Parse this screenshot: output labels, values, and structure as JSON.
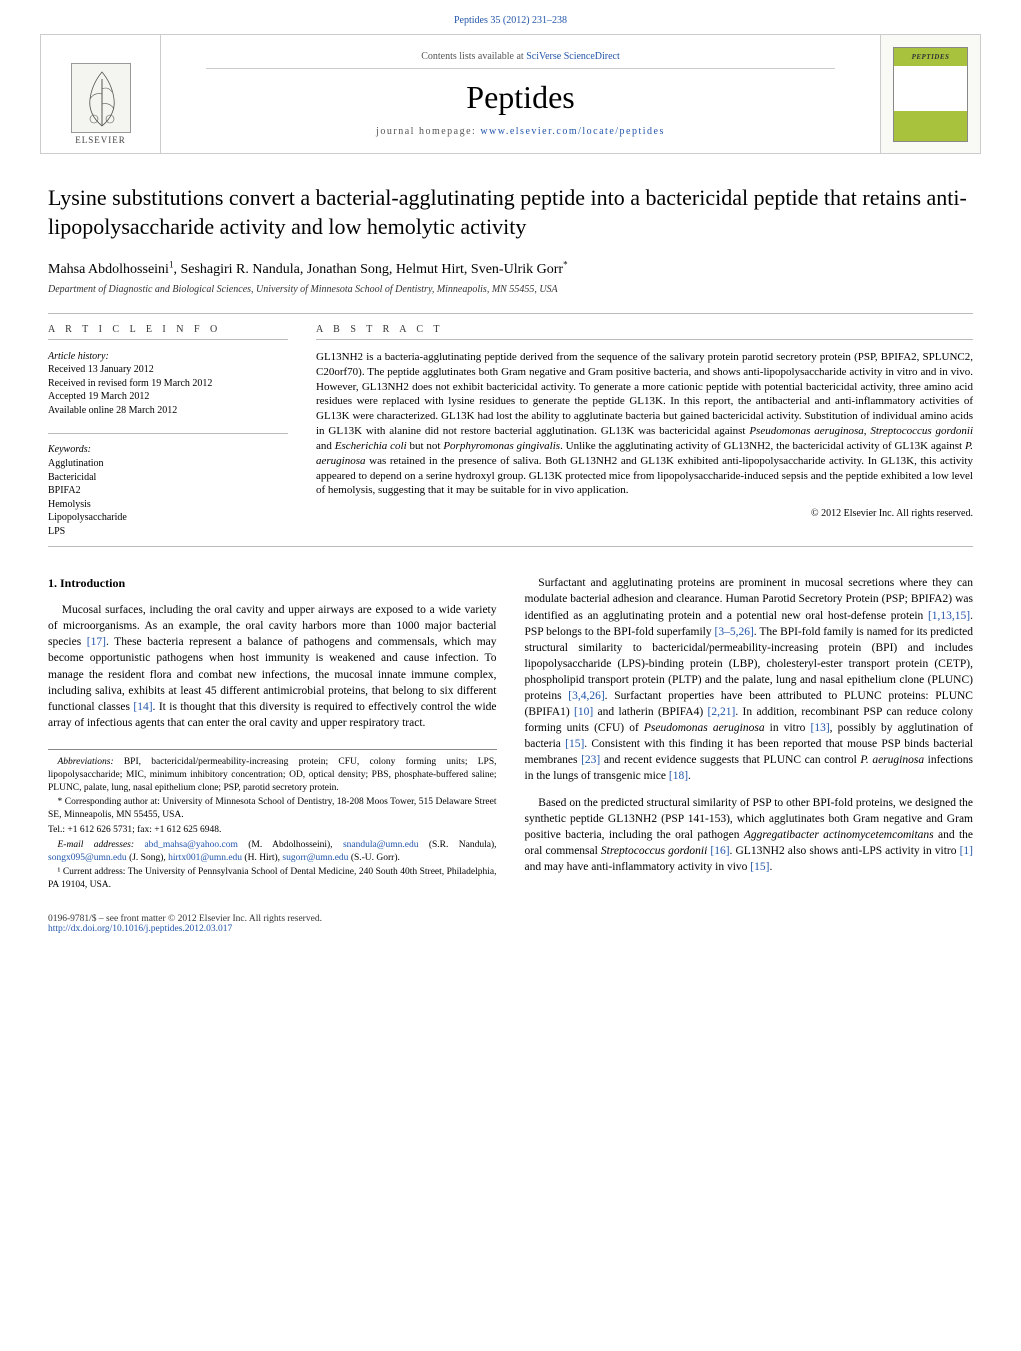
{
  "page_header": {
    "citation": "Peptides 35 (2012) 231–238",
    "journal_link_text": "Peptides"
  },
  "banner": {
    "contents_prefix": "Contents lists available at ",
    "contents_link": "SciVerse ScienceDirect",
    "journal_name": "Peptides",
    "homepage_prefix": "journal homepage: ",
    "homepage_url": "www.elsevier.com/locate/peptides",
    "elsevier_label": "ELSEVIER",
    "cover_label": "PEPTIDES"
  },
  "article": {
    "title": "Lysine substitutions convert a bacterial-agglutinating peptide into a bactericidal peptide that retains anti-lipopolysaccharide activity and low hemolytic activity",
    "authors_html": "Mahsa Abdolhosseini¹, Seshagiri R. Nandula, Jonathan Song, Helmut Hirt, Sven-Ulrik Gorr*",
    "affiliation": "Department of Diagnostic and Biological Sciences, University of Minnesota School of Dentistry, Minneapolis, MN 55455, USA"
  },
  "info": {
    "label": "A R T I C L E   I N F O",
    "history_title": "Article history:",
    "received": "Received 13 January 2012",
    "revised": "Received in revised form 19 March 2012",
    "accepted": "Accepted 19 March 2012",
    "online": "Available online 28 March 2012",
    "keywords_title": "Keywords:",
    "keywords": [
      "Agglutination",
      "Bactericidal",
      "BPIFA2",
      "Hemolysis",
      "Lipopolysaccharide",
      "LPS"
    ]
  },
  "abstract": {
    "label": "A B S T R A C T",
    "text": "GL13NH2 is a bacteria-agglutinating peptide derived from the sequence of the salivary protein parotid secretory protein (PSP, BPIFA2, SPLUNC2, C20orf70). The peptide agglutinates both Gram negative and Gram positive bacteria, and shows anti-lipopolysaccharide activity in vitro and in vivo. However, GL13NH2 does not exhibit bactericidal activity. To generate a more cationic peptide with potential bactericidal activity, three amino acid residues were replaced with lysine residues to generate the peptide GL13K. In this report, the antibacterial and anti-inflammatory activities of GL13K were characterized. GL13K had lost the ability to agglutinate bacteria but gained bactericidal activity. Substitution of individual amino acids in GL13K with alanine did not restore bacterial agglutination. GL13K was bactericidal against Pseudomonas aeruginosa, Streptococcus gordonii and Escherichia coli but not Porphyromonas gingivalis. Unlike the agglutinating activity of GL13NH2, the bactericidal activity of GL13K against P. aeruginosa was retained in the presence of saliva. Both GL13NH2 and GL13K exhibited anti-lipopolysaccharide activity. In GL13K, this activity appeared to depend on a serine hydroxyl group. GL13K protected mice from lipopolysaccharide-induced sepsis and the peptide exhibited a low level of hemolysis, suggesting that it may be suitable for in vivo application.",
    "copyright": "© 2012 Elsevier Inc. All rights reserved."
  },
  "body": {
    "intro_heading": "1.  Introduction",
    "para1": "Mucosal surfaces, including the oral cavity and upper airways are exposed to a wide variety of microorganisms. As an example, the oral cavity harbors more than 1000 major bacterial species [17]. These bacteria represent a balance of pathogens and commensals, which may become opportunistic pathogens when host immunity is weakened and cause infection. To manage the resident flora and combat new infections, the mucosal innate immune complex, including saliva, exhibits at least 45 different antimicrobial proteins, that belong to six different functional classes [14]. It is thought that this diversity is required to effectively control the wide array of infectious agents that can enter the oral cavity and upper respiratory tract.",
    "para2": "Surfactant and agglutinating proteins are prominent in mucosal secretions where they can modulate bacterial adhesion and clearance. Human Parotid Secretory Protein (PSP; BPIFA2) was identified as an agglutinating protein and a potential new oral host-defense protein [1,13,15]. PSP belongs to the BPI-fold superfamily [3–5,26]. The BPI-fold family is named for its predicted structural similarity to bactericidal/permeability-increasing protein (BPI) and includes lipopolysaccharide (LPS)-binding protein (LBP), cholesteryl-ester transport protein (CETP), phospholipid transport protein (PLTP) and the palate, lung and nasal epithelium clone (PLUNC) proteins [3,4,26]. Surfactant properties have been attributed to PLUNC proteins: PLUNC (BPIFA1) [10] and latherin (BPIFA4) [2,21]. In addition, recombinant PSP can reduce colony forming units (CFU) of Pseudomonas aeruginosa in vitro [13], possibly by agglutination of bacteria [15]. Consistent with this finding it has been reported that mouse PSP binds bacterial membranes [23] and recent evidence suggests that PLUNC can control P. aeruginosa infections in the lungs of transgenic mice [18].",
    "para3": "Based on the predicted structural similarity of PSP to other BPI-fold proteins, we designed the synthetic peptide GL13NH2 (PSP 141-153), which agglutinates both Gram negative and Gram positive bacteria, including the oral pathogen Aggregatibacter actinomycetemcomitans and the oral commensal Streptococcus gordonii [16]. GL13NH2 also shows anti-LPS activity in vitro [1] and may have anti-inflammatory activity in vivo [15].",
    "refs": {
      "r17": "[17]",
      "r14": "[14]",
      "r1_13_15": "[1,13,15]",
      "r3_5_26": "[3–5,26]",
      "r3_4_26": "[3,4,26]",
      "r10": "[10]",
      "r2_21": "[2,21]",
      "r13": "[13]",
      "r15": "[15]",
      "r23": "[23]",
      "r18": "[18]",
      "r16": "[16]",
      "r1": "[1]"
    }
  },
  "footnotes": {
    "abbrev": "Abbreviations: BPI, bactericidal/permeability-increasing protein; CFU, colony forming units; LPS, lipopolysaccharide; MIC, minimum inhibitory concentration; OD, optical density; PBS, phosphate-buffered saline; PLUNC, palate, lung, nasal epithelium clone; PSP, parotid secretory protein.",
    "corresponding": "* Corresponding author at: University of Minnesota School of Dentistry, 18-208 Moos Tower, 515 Delaware Street SE, Minneapolis, MN 55455, USA.",
    "tel_fax": "Tel.: +1 612 626 5731; fax: +1 612 625 6948.",
    "email_label": "E-mail addresses: ",
    "emails": [
      {
        "addr": "abd_mahsa@yahoo.com",
        "who": " (M. Abdolhosseini), "
      },
      {
        "addr": "snandula@umn.edu",
        "who": " (S.R. Nandula), "
      },
      {
        "addr": "songx095@umn.edu",
        "who": " (J. Song), "
      },
      {
        "addr": "hirtx001@umn.edu",
        "who": " (H. Hirt), "
      },
      {
        "addr": "sugorr@umn.edu",
        "who": " (S.-U. Gorr)."
      }
    ],
    "current_addr": "¹ Current address: The University of Pennsylvania School of Dental Medicine, 240 South 40th Street, Philadelphia, PA 19104, USA."
  },
  "footer": {
    "issn_line": "0196-9781/$ – see front matter © 2012 Elsevier Inc. All rights reserved.",
    "doi": "http://dx.doi.org/10.1016/j.peptides.2012.03.017"
  },
  "colors": {
    "link": "#2255aa",
    "rule": "#bbbbbb",
    "cover_accent": "#a8c23e"
  }
}
